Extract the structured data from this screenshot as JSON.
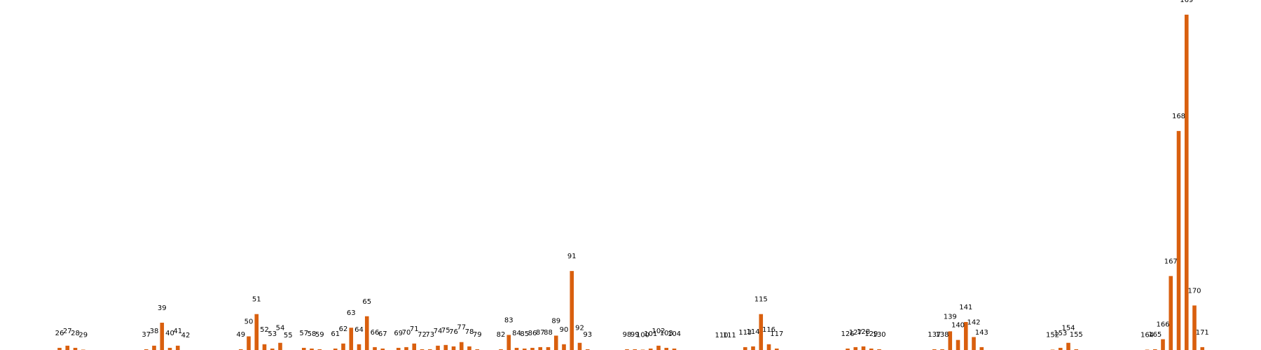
{
  "chart_data": {
    "type": "bar",
    "title": "",
    "xlabel": "",
    "ylabel": "",
    "ylim": [
      0,
      465
    ],
    "grid": false,
    "legend": "none",
    "bar_color": "#d95f0e",
    "label_color": "#000000",
    "background": "#ffffff",
    "categories": [
      "26",
      "27",
      "28",
      "29",
      "37",
      "38",
      "39",
      "40",
      "41",
      "42",
      "49",
      "50",
      "51",
      "52",
      "53",
      "54",
      "55",
      "57",
      "58",
      "59",
      "61",
      "62",
      "63",
      "64",
      "65",
      "66",
      "67",
      "69",
      "70",
      "71",
      "72",
      "73",
      "74",
      "75",
      "76",
      "77",
      "78",
      "79",
      "82",
      "83",
      "84",
      "85",
      "86",
      "87",
      "88",
      "89",
      "90",
      "91",
      "92",
      "93",
      "98",
      "99",
      "100",
      "101",
      "102",
      "103",
      "104",
      "110",
      "111",
      "113",
      "114",
      "115",
      "116",
      "117",
      "126",
      "127",
      "128",
      "129",
      "130",
      "137",
      "138",
      "139",
      "140",
      "141",
      "142",
      "143",
      "152",
      "153",
      "154",
      "155",
      "164",
      "165",
      "166",
      "167",
      "168",
      "170",
      "169",
      "171"
    ],
    "x": [
      26,
      27,
      28,
      29,
      37,
      38,
      39,
      40,
      41,
      42,
      49,
      50,
      51,
      52,
      53,
      54,
      55,
      57,
      58,
      59,
      61,
      62,
      63,
      64,
      65,
      66,
      67,
      69,
      70,
      71,
      72,
      73,
      74,
      75,
      76,
      77,
      78,
      79,
      82,
      83,
      84,
      85,
      86,
      87,
      88,
      89,
      90,
      91,
      92,
      93,
      98,
      99,
      100,
      101,
      102,
      103,
      104,
      110,
      111,
      113,
      114,
      115,
      116,
      117,
      126,
      127,
      128,
      129,
      130,
      137,
      138,
      139,
      140,
      141,
      142,
      143,
      152,
      153,
      154,
      155,
      164,
      165,
      166,
      167,
      168,
      170,
      169,
      171
    ],
    "labels": [
      "26",
      "27",
      "28",
      "29",
      "37",
      "38",
      "39",
      "40",
      "41",
      "42",
      "49",
      "50",
      "51",
      "52",
      "53",
      "54",
      "55",
      "57",
      "58",
      "59",
      "61",
      "62",
      "63",
      "64",
      "65",
      "66",
      "67",
      "69",
      "70",
      "71",
      "72",
      "73",
      "74",
      "75",
      "76",
      "77",
      "78",
      "79",
      "82",
      "83",
      "84",
      "85",
      "86",
      "87",
      "88",
      "89",
      "90",
      "91",
      "92",
      "93",
      "98",
      "99",
      "100",
      "101",
      "102",
      "103",
      "104",
      "110",
      "111",
      "113",
      "114",
      "115",
      "116",
      "117",
      "126",
      "127",
      "128",
      "129",
      "130",
      "137",
      "138",
      "139",
      "140",
      "141",
      "142",
      "143",
      "152",
      "153",
      "154",
      "155",
      "164",
      "165",
      "166",
      "167",
      "168",
      "170",
      "169",
      "171"
    ],
    "values": [
      3,
      6,
      3,
      0.5,
      1,
      6,
      38,
      3,
      6,
      0,
      1,
      19,
      50,
      8,
      2,
      10,
      0,
      3,
      2,
      1,
      2,
      9,
      31,
      8,
      47,
      4,
      2,
      3,
      4,
      9,
      1,
      1,
      6,
      7,
      5,
      11,
      5,
      1,
      1,
      21,
      3,
      2,
      3,
      4,
      4,
      20,
      8,
      110,
      10,
      1,
      1,
      1,
      0.5,
      2,
      6,
      3,
      2,
      0,
      0,
      4,
      5,
      50,
      8,
      2,
      2,
      4,
      5,
      2,
      1,
      1,
      1,
      26,
      14,
      39,
      18,
      4,
      0.5,
      3,
      10,
      1,
      0.5,
      1,
      15,
      103,
      305,
      62,
      467,
      4
    ]
  }
}
